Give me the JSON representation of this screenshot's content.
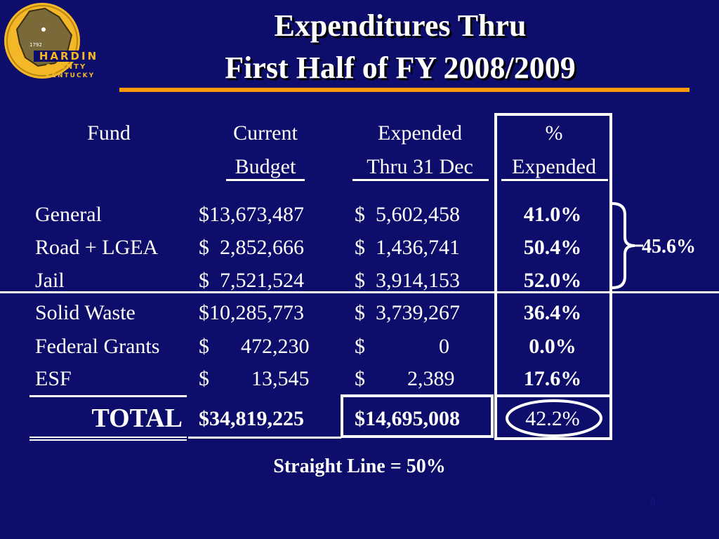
{
  "logo": {
    "year": "1792",
    "line1": "HARDIN",
    "line2": "COUNTY",
    "line3": "KENTUCKY",
    "colors": {
      "gold": "#f4b728",
      "map": "#7a6a3a"
    }
  },
  "title": {
    "line1": "Expenditures Thru",
    "line2": "First Half of FY 2008/2009"
  },
  "table": {
    "headers": {
      "fund": "Fund",
      "budget_line1": "Current",
      "budget_line2": "Budget",
      "expended_line1": "Expended",
      "expended_line2": "Thru 31 Dec",
      "pct_line1": "%",
      "pct_line2": "Expended"
    },
    "rows": [
      {
        "fund": "General",
        "budget": "$13,673,487",
        "expended": "$  5,602,458",
        "pct": "41.0%"
      },
      {
        "fund": "Road + LGEA",
        "budget": "$  2,852,666",
        "expended": "$  1,436,741",
        "pct": "50.4%"
      },
      {
        "fund": "Jail",
        "budget": "$  7,521,524",
        "expended": "$  3,914,153",
        "pct": "52.0%"
      },
      {
        "fund": "Solid Waste",
        "budget": "$10,285,773",
        "expended": "$  3,739,267",
        "pct": "36.4%"
      },
      {
        "fund": "Federal Grants",
        "budget": "$      472,230",
        "expended": "$              0",
        "pct": "0.0%"
      },
      {
        "fund": "ESF",
        "budget": "$        13,545",
        "expended": "$        2,389",
        "pct": "17.6%"
      }
    ],
    "total": {
      "label": "TOTAL",
      "budget": "$34,819,225",
      "expended": "$14,695,008",
      "pct": "42.2%"
    }
  },
  "group_pct": "45.6%",
  "footer": {
    "straight_line": "Straight Line = 50%",
    "page_number": "8"
  },
  "colors": {
    "background": "#0d0d6b",
    "accent_rule": "#ff9900",
    "text": "#ffffff"
  }
}
